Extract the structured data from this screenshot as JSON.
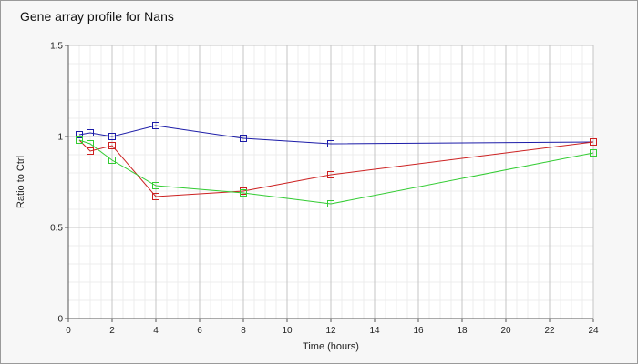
{
  "chart_data": {
    "type": "line",
    "title": "Gene array profile for Nans",
    "xlabel": "Time (hours)",
    "ylabel": "Ratio to Ctrl",
    "xlim": [
      0,
      24
    ],
    "ylim": [
      0,
      1.5
    ],
    "xticks": [
      0,
      2,
      4,
      6,
      8,
      10,
      12,
      14,
      16,
      18,
      20,
      22,
      24
    ],
    "yticks": [
      0,
      0.5,
      1,
      1.5
    ],
    "grid": true,
    "legend": "none",
    "series": [
      {
        "color": "#1c1ca8",
        "x": [
          0.5,
          1,
          2,
          4,
          8,
          12,
          24
        ],
        "y": [
          1.01,
          1.02,
          1.0,
          1.06,
          0.99,
          0.96,
          0.97
        ]
      },
      {
        "color": "#cc2020",
        "x": [
          0.5,
          1,
          2,
          4,
          8,
          12,
          24
        ],
        "y": [
          0.98,
          0.92,
          0.95,
          0.67,
          0.7,
          0.79,
          0.97
        ]
      },
      {
        "color": "#33cc33",
        "x": [
          0.5,
          1,
          2,
          4,
          8,
          12,
          24
        ],
        "y": [
          0.98,
          0.96,
          0.87,
          0.73,
          0.69,
          0.63,
          0.91
        ]
      }
    ]
  }
}
